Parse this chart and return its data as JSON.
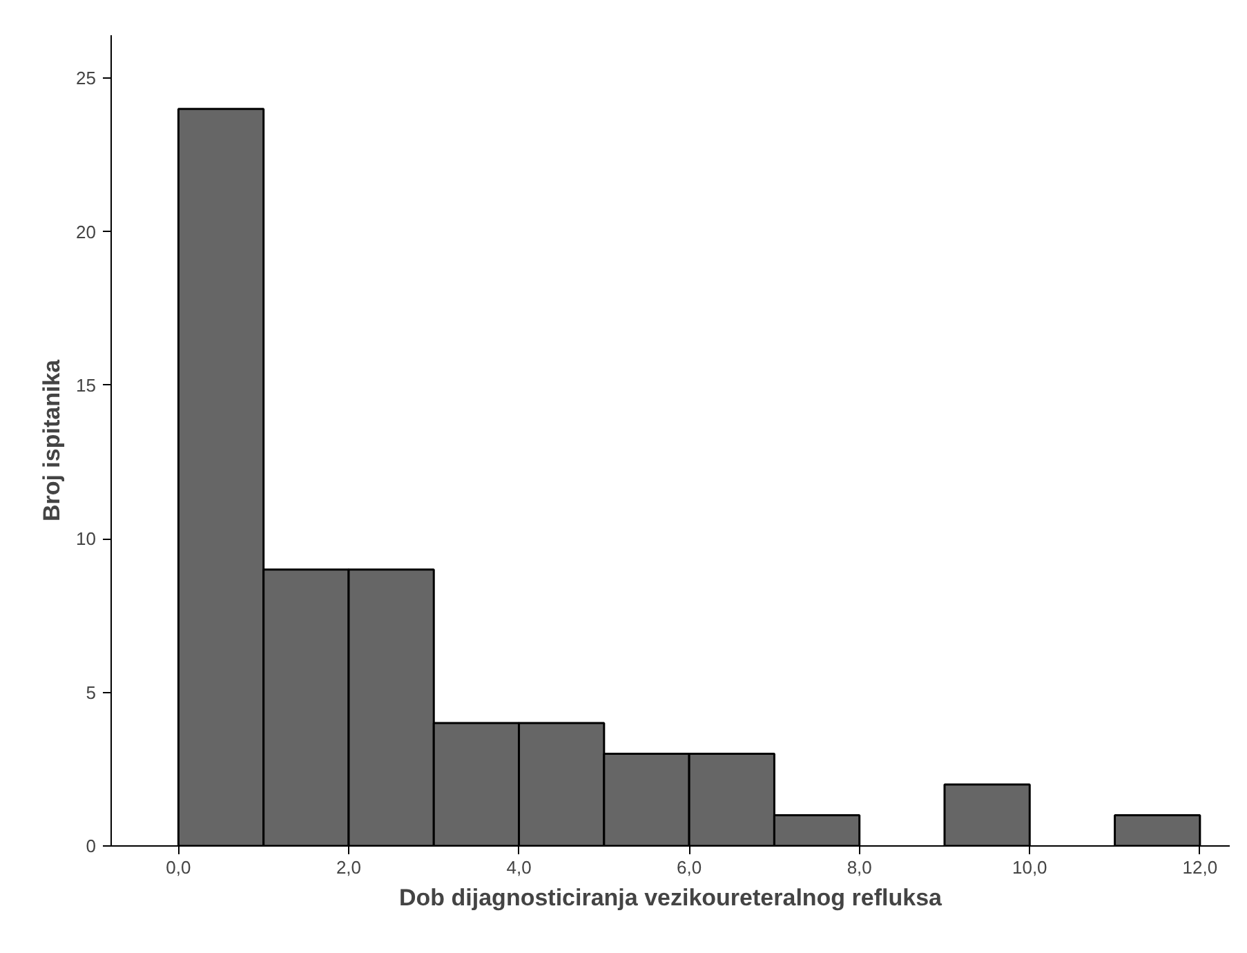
{
  "chart_data": {
    "type": "histogram",
    "xlabel": "Dob dijagnosticiranja vezikoureteralnog refluksa",
    "ylabel": "Broj ispitanika",
    "bins": [
      0,
      1,
      2,
      3,
      4,
      5,
      6,
      7,
      8,
      9,
      10,
      11,
      12
    ],
    "values": [
      24,
      9,
      9,
      4,
      4,
      3,
      3,
      1,
      0,
      2,
      0,
      1
    ],
    "color": "#666666",
    "xlim": [
      -0.79,
      12.35
    ],
    "ylim": [
      0,
      26.4
    ],
    "xticks": [
      {
        "value": 0,
        "label": "0,0"
      },
      {
        "value": 2,
        "label": "2,0"
      },
      {
        "value": 4,
        "label": "4,0"
      },
      {
        "value": 6,
        "label": "6,0"
      },
      {
        "value": 8,
        "label": "8,0"
      },
      {
        "value": 10,
        "label": "10,0"
      },
      {
        "value": 12,
        "label": "12,0"
      }
    ],
    "yticks": [
      0,
      5,
      10,
      15,
      20,
      25
    ],
    "grid": false
  }
}
